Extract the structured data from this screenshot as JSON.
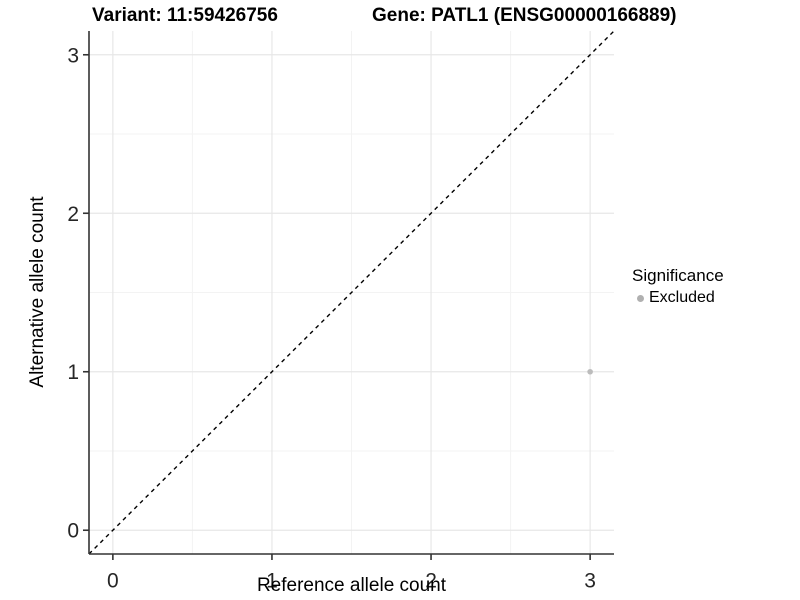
{
  "chart_data": {
    "type": "scatter",
    "title_left": "Variant: 11:59426756",
    "title_right": "Gene: PATL1 (ENSG00000166889)",
    "xlabel": "Reference allele count",
    "ylabel": "Alternative allele count",
    "xlim": [
      -0.15,
      3.15
    ],
    "ylim": [
      -0.15,
      3.15
    ],
    "xticks": [
      0,
      1,
      2,
      3
    ],
    "yticks": [
      0,
      1,
      2,
      3
    ],
    "minor_ticks": [
      0.5,
      1.5,
      2.5
    ],
    "grid": true,
    "identity_line": {
      "style": "dashed",
      "from": [
        -0.15,
        -0.15
      ],
      "to": [
        3.15,
        3.15
      ]
    },
    "points": [
      {
        "x": 3,
        "y": 1,
        "significance": "Excluded"
      }
    ],
    "legend": {
      "title": "Significance",
      "position": "right",
      "entries": [
        {
          "label": "Excluded",
          "color": "#b0b0b0",
          "marker": "circle"
        }
      ]
    },
    "colors": {
      "point": "#bcbcbc",
      "legend_marker": "#a8a8a8",
      "grid_major": "#e7e7e7",
      "grid_minor": "#f3f3f3",
      "axis": "#333333",
      "identity": "#000000",
      "tick_text": "#262626",
      "background": "#ffffff"
    }
  }
}
